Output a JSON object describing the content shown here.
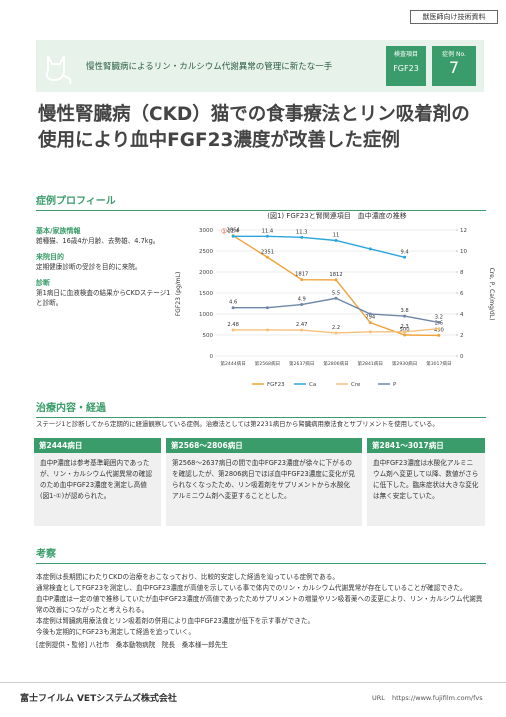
{
  "header": {
    "tag": "獣医師向け技術資料",
    "banner": "慢性腎臓病によるリン・カルシウム代謝異常の管理に新たな一手",
    "item_label": "検査項目",
    "item_value": "FGF23",
    "case_label": "症例 No.",
    "case_value": "7"
  },
  "title": [
    "慢性腎臓病（CKD）猫での食事療法とリン吸着剤の",
    "使用により血中FGF23濃度が改善した症例"
  ],
  "profile": {
    "heading": "症例プロフィール",
    "items": [
      {
        "label": "基本/家族情報",
        "text": "雑種猫、16歳4か月齢、去勢雄、4.7kg。"
      },
      {
        "label": "来院目的",
        "text": "定期健康診断の受診を目的に来院。"
      },
      {
        "label": "診断",
        "text": "第1病日に血液検査の結果からCKDステージ1と診断。"
      }
    ]
  },
  "chart_data": {
    "type": "line",
    "title": "(図1) FGF23と腎関連項目　血中濃度の推移",
    "y_label": "FGF23 (pg/mL)",
    "y2_label": "Cre, P, Ca(mg/dL)",
    "annotation": "①",
    "categories": [
      "第2444病日",
      "第2568病日",
      "第2637病日",
      "第2806病日",
      "第2841病日",
      "第2930病日",
      "第3017病日"
    ],
    "ylim": [
      0,
      3000
    ],
    "yticks": [
      0,
      500,
      1000,
      1500,
      2000,
      2500,
      3000
    ],
    "y2lim": [
      0,
      12
    ],
    "y2ticks": [
      0,
      2,
      4,
      6,
      8,
      10,
      12
    ],
    "series": [
      {
        "name": "FGF23",
        "color": "#f0a23a",
        "values": [
          2864,
          2351,
          1817,
          1812,
          794,
          500,
          490
        ]
      },
      {
        "name": "Ca",
        "color": "#2ba6dc",
        "axis": "y2",
        "values": [
          11.4,
          11.4,
          11.3,
          11,
          10.2,
          9.4,
          null
        ],
        "value_labels": [
          "11.4",
          "11.4",
          "11.3",
          "11",
          null,
          "9.4",
          null
        ]
      },
      {
        "name": "Cre",
        "color": "#f6c07c",
        "axis": "y2",
        "values": [
          2.48,
          2.48,
          2.47,
          2.2,
          2.3,
          2.3,
          2.6
        ],
        "value_labels": [
          "2.48",
          null,
          "2.47",
          "2.2",
          null,
          "2.3",
          "2.6"
        ]
      },
      {
        "name": "P",
        "color": "#6f86a6",
        "axis": "y2",
        "values": [
          4.6,
          4.6,
          4.9,
          5.5,
          4,
          3.8,
          3.2
        ],
        "value_labels": [
          "4.6",
          null,
          "4.9",
          "5.5",
          null,
          "3.8",
          "3.2"
        ]
      }
    ]
  },
  "treatment": {
    "heading": "治療内容・経過",
    "intro": "ステージ1と診断してから定期的に経過観察している症例。治療法としては第2231病日から腎臓病用療法食とサプリメントを使用している。",
    "boxes": [
      {
        "title": "第2444病日",
        "text": "血中P濃度は参考基準範囲内であったが、リン・カルシウム代謝異常の確認のため血中FGF23濃度を測定し高値(図1-①)が認められた。"
      },
      {
        "title": "第2568～2806病日",
        "text": "第2568～2637病日の間で血中FGF23濃度が徐々に下がるのを確認したが、第2806病日でほぼ血中FGF23濃度に変化が見られなくなったため、リン吸着剤をサプリメントから水酸化アルミニウム剤へ変更することとした。"
      },
      {
        "title": "第2841～3017病日",
        "text": "血中FGF23濃度は水酸化アルミニウム剤へ変更して以降、数値がさらに低下した。臨床症状は大きな変化は無く安定していた。"
      }
    ]
  },
  "discussion": {
    "heading": "考察",
    "paragraphs": [
      "本症例は長期間にわたりCKDの治療をおこなっており、比較的安定した経過を辿っている症例である。",
      "通常検査としてFGF23を測定し、血中FGF23濃度が高値を示している事で体内でのリン・カルシウム代謝異常が存在していることが確認できた。",
      "血中P濃度は一定の値で推移していたが血中FGF23濃度が高値であったためサプリメントの増量やリン吸着薬への変更により、リン・カルシウム代謝異常の改善につながったと考えられる。",
      "本症例は腎臓病用療法食とリン吸着剤の併用により血中FGF23濃度が低下を示す事ができた。",
      "今後も定期的にFGF23も測定して経過を追っていく。"
    ],
    "credit": "[症例提供・監修] 八社市　桑本動物病院　院長　桑本様一郎先生"
  },
  "footer": {
    "company": "富士フイルム VETシステムズ株式会社",
    "url_label": "URL",
    "url": "https://www.fujifilm.com/fvs"
  }
}
